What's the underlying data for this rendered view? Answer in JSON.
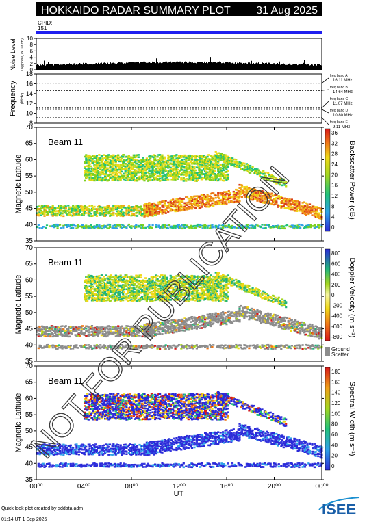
{
  "header": {
    "title": "HOKKAIDO RADAR SUMMARY PLOT",
    "date": "31 Aug 2025",
    "cpid_label": "CPID:",
    "cpid_value": "151"
  },
  "noise_panel": {
    "ylabel": "Noise Level",
    "ylabel_sub": "Log(noise) (x 10⁴ dB)",
    "ticks": [
      "0",
      "2",
      "4",
      "6",
      "8",
      "10"
    ],
    "ymax": 10
  },
  "frequency_panel": {
    "ylabel": "Frequency",
    "ylabel_unit": "(MHz)",
    "ticks": [
      "8",
      "10",
      "12",
      "14",
      "16",
      "18"
    ],
    "ylim": [
      8,
      18
    ],
    "bands": [
      {
        "name": "freq band A",
        "freq_label": "16.11 MHz",
        "mhz": 16.11
      },
      {
        "name": "freq band B",
        "freq_label": "14.64 MHz",
        "mhz": 14.64
      },
      {
        "name": "freq band C",
        "freq_label": "11.07 MHz",
        "mhz": 11.07
      },
      {
        "name": "freq band D",
        "freq_label": "10.80 MHz",
        "mhz": 10.8
      },
      {
        "name": "freq band E",
        "freq_label": "9.11 MHz",
        "mhz": 9.11
      }
    ]
  },
  "panels": [
    {
      "beam_label": "Beam 11",
      "ylabel": "Magnetic Latitude",
      "colorbar_title": "Backscatter Power (dB)",
      "colorbar_ticks": [
        "0",
        "4",
        "8",
        "12",
        "16",
        "20",
        "24",
        "28",
        "32",
        "36"
      ],
      "ground_scatter": ""
    },
    {
      "beam_label": "Beam 11",
      "ylabel": "Magnetic Latitude",
      "colorbar_title": "Doppler Velocity (m s⁻¹)",
      "colorbar_ticks": [
        "-800",
        "-600",
        "-400",
        "-200",
        "0",
        "200",
        "400",
        "600",
        "800"
      ],
      "ground_scatter": "Ground Scatter"
    },
    {
      "beam_label": "Beam 11",
      "ylabel": "Magnetic Latitude",
      "colorbar_title": "Spectral Width (m s⁻¹)",
      "colorbar_ticks": [
        "0",
        "20",
        "40",
        "60",
        "80",
        "100",
        "120",
        "140",
        "160",
        "180"
      ],
      "ground_scatter": ""
    }
  ],
  "watermark": "NOT FOR PUBLICATION",
  "footer": {
    "credit": "Quick look plot created by sddata.adm",
    "timestamp": "01:14 UT  1 Sep 2025",
    "logo_text": "ISEE"
  },
  "chart_data": {
    "type": "heatmap",
    "title": "HOKKAIDO RADAR SUMMARY PLOT",
    "xlabel": "UT",
    "xlim": [
      0,
      24
    ],
    "x_ticks": [
      {
        "value": 0,
        "label": "00⁰⁰"
      },
      {
        "value": 4,
        "label": "04⁰⁰"
      },
      {
        "value": 8,
        "label": "08⁰⁰"
      },
      {
        "value": 12,
        "label": "12⁰⁰"
      },
      {
        "value": 16,
        "label": "16⁰⁰"
      },
      {
        "value": 20,
        "label": "20⁰⁰"
      },
      {
        "value": 24,
        "label": "00⁰⁰"
      }
    ],
    "ylabel": "Magnetic Latitude",
    "ylim": [
      35,
      70
    ],
    "y_ticks": [
      35,
      40,
      45,
      50,
      55,
      60,
      65,
      70
    ],
    "scatter_bands": [
      {
        "name": "low-latitude band",
        "ut_start": 0,
        "ut_end": 24,
        "lat_center": 40,
        "lat_halfwidth": 0.6
      },
      {
        "name": "main band",
        "ut_start": 0,
        "ut_end": 10,
        "lat_center": 44.8,
        "lat_halfwidth": 1.6
      },
      {
        "name": "rising arc",
        "ut_start": 9,
        "ut_end": 17,
        "lat_center_start": 45,
        "lat_center_end": 49.5,
        "lat_halfwidth": 2.0
      },
      {
        "name": "descending arc",
        "ut_start": 17,
        "ut_end": 24,
        "lat_center_start": 51,
        "lat_center_end": 44,
        "lat_halfwidth": 1.8
      },
      {
        "name": "upper patch",
        "ut_start": 4,
        "ut_end": 16,
        "lat_center": 58,
        "lat_halfwidth": 4.0
      },
      {
        "name": "late diagonal arc",
        "ut_start": 15,
        "ut_end": 21,
        "lat_center_start": 62,
        "lat_center_end": 53,
        "lat_halfwidth": 1.2
      }
    ]
  }
}
